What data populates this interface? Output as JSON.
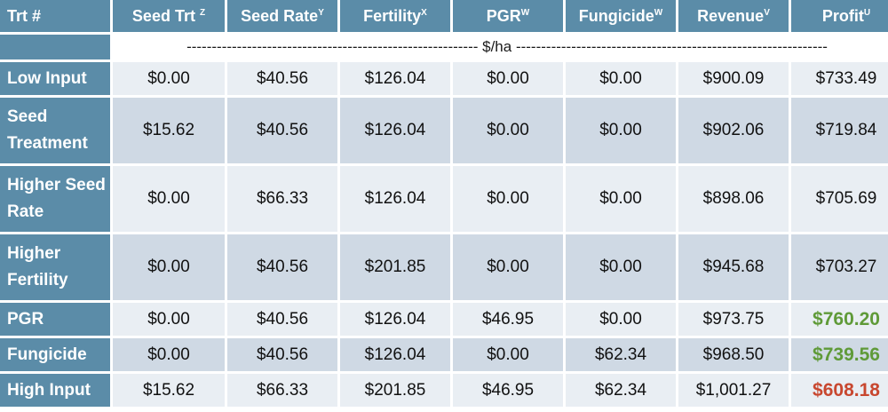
{
  "columns": [
    {
      "label": "Trt #",
      "sup": ""
    },
    {
      "label": "Seed Trt ",
      "sup": "Z"
    },
    {
      "label": "Seed Rate",
      "sup": "Y"
    },
    {
      "label": "Fertility",
      "sup": "X"
    },
    {
      "label": "PGR",
      "sup": "W"
    },
    {
      "label": "Fungicide",
      "sup": "W"
    },
    {
      "label": "Revenue",
      "sup": "V"
    },
    {
      "label": "Profit",
      "sup": "U"
    }
  ],
  "unit_row": "---------------------------------------------------------- $/ha --------------------------------------------------------------",
  "rows": [
    {
      "label": "Low Input",
      "values": [
        "$0.00",
        "$40.56",
        "$126.04",
        "$0.00",
        "$0.00",
        "$900.09",
        "$733.49"
      ],
      "profit_color": ""
    },
    {
      "label": "Seed Treatment",
      "values": [
        "$15.62",
        "$40.56",
        "$126.04",
        "$0.00",
        "$0.00",
        "$902.06",
        "$719.84"
      ],
      "profit_color": ""
    },
    {
      "label": "Higher Seed Rate",
      "values": [
        "$0.00",
        "$66.33",
        "$126.04",
        "$0.00",
        "$0.00",
        "$898.06",
        "$705.69"
      ],
      "profit_color": ""
    },
    {
      "label": "Higher Fertility",
      "values": [
        "$0.00",
        "$40.56",
        "$201.85",
        "$0.00",
        "$0.00",
        "$945.68",
        "$703.27"
      ],
      "profit_color": ""
    },
    {
      "label": "PGR",
      "values": [
        "$0.00",
        "$40.56",
        "$126.04",
        "$46.95",
        "$0.00",
        "$973.75",
        "$760.20"
      ],
      "profit_color": "green"
    },
    {
      "label": "Fungicide",
      "values": [
        "$0.00",
        "$40.56",
        "$126.04",
        "$0.00",
        "$62.34",
        "$968.50",
        "$739.56"
      ],
      "profit_color": "green"
    },
    {
      "label": "High Input",
      "values": [
        "$15.62",
        "$66.33",
        "$201.85",
        "$46.95",
        "$62.34",
        "$1,001.27",
        "$608.18"
      ],
      "profit_color": "red"
    }
  ],
  "colors": {
    "header_bg": "#5b8ca8",
    "row_light": "#e9eef3",
    "row_dark": "#cfd9e4",
    "profit_good": "#5f9a38",
    "profit_bad": "#c8472f"
  }
}
